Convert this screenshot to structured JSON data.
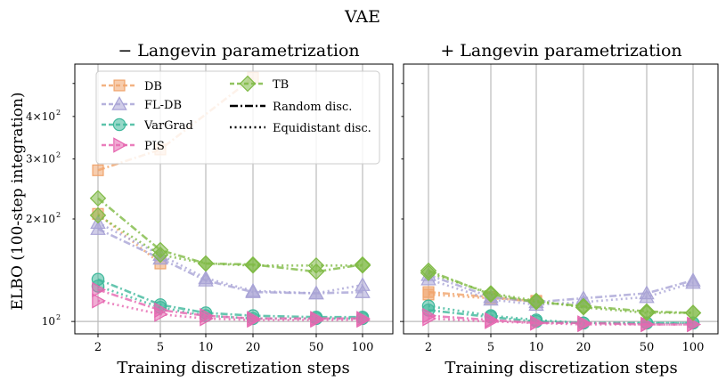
{
  "chart_data": {
    "type": "line",
    "title": "VAE",
    "ylabel": "ELBO (100-step integration)",
    "xlabel": "Training discretization steps",
    "yscale": "log",
    "ylim": [
      92,
      570
    ],
    "ytick_labels": [
      {
        "value": 100,
        "base": "10",
        "exp": "2"
      },
      {
        "value": 200,
        "base": "2×10",
        "exp": "2"
      },
      {
        "value": 300,
        "base": "3×10",
        "exp": "2"
      },
      {
        "value": 400,
        "base": "4×10",
        "exp": "2"
      }
    ],
    "categories": [
      "2",
      "5",
      "10",
      "20",
      "50",
      "100"
    ],
    "series_styles": [
      {
        "name": "DB",
        "color": "#f0a46c",
        "marker": "square"
      },
      {
        "name": "FL-DB",
        "color": "#a9a4d6",
        "marker": "triangle-up"
      },
      {
        "name": "VarGrad",
        "color": "#3fb89b",
        "marker": "circle"
      },
      {
        "name": "PIS",
        "color": "#e667b0",
        "marker": "triangle-right"
      },
      {
        "name": "TB",
        "color": "#7fba45",
        "marker": "diamond"
      }
    ],
    "legend_linestyles": [
      {
        "label": "Random disc.",
        "style": "dashdot"
      },
      {
        "label": "Equidistant disc.",
        "style": "dotted"
      }
    ],
    "legend_placement": "top-left",
    "panels": [
      {
        "title": "− Langevin parametrization",
        "series": [
          {
            "name": "DB",
            "style": "dashdot",
            "values": [
              278,
              320,
              null,
              520,
              null,
              null
            ]
          },
          {
            "name": "DB",
            "style": "dotted",
            "values": [
              207,
              148,
              null,
              null,
              null,
              null
            ]
          },
          {
            "name": "FL-DB",
            "style": "dashdot",
            "values": [
              187,
              153,
              132,
              122,
              121,
              122
            ]
          },
          {
            "name": "FL-DB",
            "style": "dotted",
            "values": [
              195,
              157,
              134,
              123,
              121,
              128
            ]
          },
          {
            "name": "VarGrad",
            "style": "dashdot",
            "values": [
              133,
              112,
              106,
              104,
              103,
              103
            ]
          },
          {
            "name": "VarGrad",
            "style": "dotted",
            "values": [
              127,
              110,
              104,
              102,
              102,
              102
            ]
          },
          {
            "name": "PIS",
            "style": "dashdot",
            "values": [
              124,
              108,
              104,
              102,
              102,
              102
            ]
          },
          {
            "name": "PIS",
            "style": "dotted",
            "values": [
              115,
              105,
              102,
              101,
              101,
              101
            ]
          },
          {
            "name": "TB",
            "style": "dashdot",
            "values": [
              230,
              162,
              148,
              147,
              140,
              147
            ]
          },
          {
            "name": "TB",
            "style": "dotted",
            "values": [
              205,
              157,
              148,
              146,
              146,
              146
            ]
          }
        ]
      },
      {
        "title": "+ Langevin parametrization",
        "series": [
          {
            "name": "DB",
            "style": "dashdot",
            "values": [
              122,
              118,
              114,
              null,
              null,
              null
            ]
          },
          {
            "name": "DB",
            "style": "dotted",
            "values": [
              120,
              117,
              115,
              null,
              null,
              null
            ]
          },
          {
            "name": "FL-DB",
            "style": "dashdot",
            "values": [
              137,
              118,
              114,
              117,
              121,
              132
            ]
          },
          {
            "name": "FL-DB",
            "style": "dotted",
            "values": [
              133,
              116,
              112,
              114,
              118,
              130
            ]
          },
          {
            "name": "VarGrad",
            "style": "dashdot",
            "values": [
              108,
              103,
              100,
              99,
              99,
              99
            ]
          },
          {
            "name": "VarGrad",
            "style": "dotted",
            "values": [
              111,
              104,
              101,
              99,
              99,
              99
            ]
          },
          {
            "name": "PIS",
            "style": "dashdot",
            "values": [
              104,
              101,
              99,
              99,
              98,
              98
            ]
          },
          {
            "name": "PIS",
            "style": "dotted",
            "values": [
              102,
              100,
              99,
              98,
              98,
              98
            ]
          },
          {
            "name": "TB",
            "style": "dashdot",
            "values": [
              141,
              120,
              114,
              111,
              107,
              106
            ]
          },
          {
            "name": "TB",
            "style": "dotted",
            "values": [
              139,
              121,
              115,
              110,
              106,
              106
            ]
          }
        ]
      }
    ]
  }
}
